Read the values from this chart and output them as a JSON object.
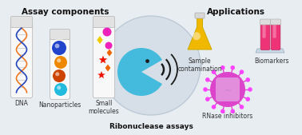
{
  "background_color": "#e8edf2",
  "title_left": "Assay components",
  "title_right": "Applications",
  "center_label": "Ribonuclease assays",
  "left_labels": [
    "DNA",
    "Nanoparticles",
    "Small\nmolecules"
  ],
  "right_labels": [
    "Sample\ncontamination",
    "Biomarkers",
    "RNase inhibitors"
  ],
  "circle_bg": "#d6dfe8",
  "circle_edge": "#bccad6",
  "tube_body": "#f8f8f8",
  "tube_cap": "#e2e2e2",
  "tube_edge": "#bbbbbb",
  "dna_orange": "#f07820",
  "dna_blue": "#2244bb",
  "np1": "#2244cc",
  "np2": "#ee8800",
  "np3": "#cc4400",
  "np4": "#22bbdd",
  "sm_pink": "#ee22bb",
  "sm_yellow": "#eecc00",
  "sm_orange": "#ee6600",
  "sm_red": "#ee1100",
  "flask_yellow": "#f0b800",
  "flask_edge": "#ccaa00",
  "rack_color": "#c8d8e4",
  "tube_pink": "#ee3377",
  "virus_main": "#dd44cc",
  "virus_spike": "#ee44ee",
  "pacman_blue": "#44bbdd",
  "signal_dark": "#1a1a1a",
  "text_color": "#333333",
  "title_color": "#111111"
}
